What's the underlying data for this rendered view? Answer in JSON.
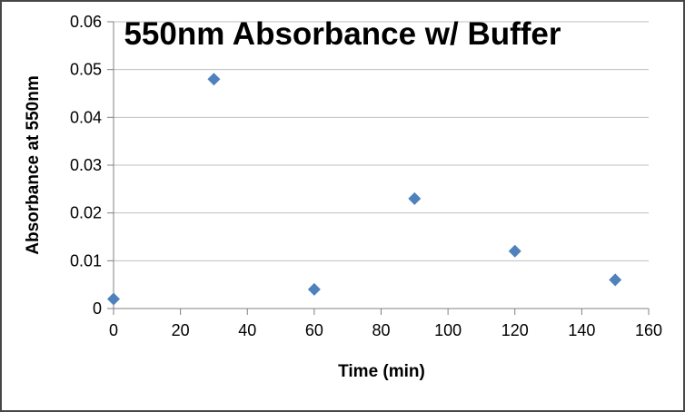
{
  "frame": {
    "background": "#ffffff",
    "border_color": "#474747"
  },
  "chart_data": {
    "type": "scatter",
    "title": "550nm Absorbance w/ Buffer",
    "xlabel": "Time (min)",
    "ylabel": "Absorbance at 550nm",
    "x": [
      0,
      30,
      60,
      90,
      120,
      150
    ],
    "y": [
      0.002,
      0.048,
      0.004,
      0.023,
      0.012,
      0.006
    ],
    "xlim": [
      0,
      160
    ],
    "ylim": [
      0,
      0.06
    ],
    "x_ticks": [
      0,
      20,
      40,
      60,
      80,
      100,
      120,
      140,
      160
    ],
    "x_tick_labels": [
      "0",
      "20",
      "40",
      "60",
      "80",
      "100",
      "120",
      "140",
      "160"
    ],
    "y_ticks": [
      0,
      0.01,
      0.02,
      0.03,
      0.04,
      0.05,
      0.06
    ],
    "y_tick_labels": [
      "0",
      "0.01",
      "0.02",
      "0.03",
      "0.04",
      "0.05",
      "0.06"
    ],
    "grid": true,
    "legend": "none",
    "marker": {
      "shape": "diamond",
      "color": "#4F81BD",
      "half_size": 7
    },
    "colors": {
      "gridline": "#BFBFBF",
      "axis": "#808080",
      "tick_text": "#000000",
      "title_text": "#000000"
    }
  }
}
